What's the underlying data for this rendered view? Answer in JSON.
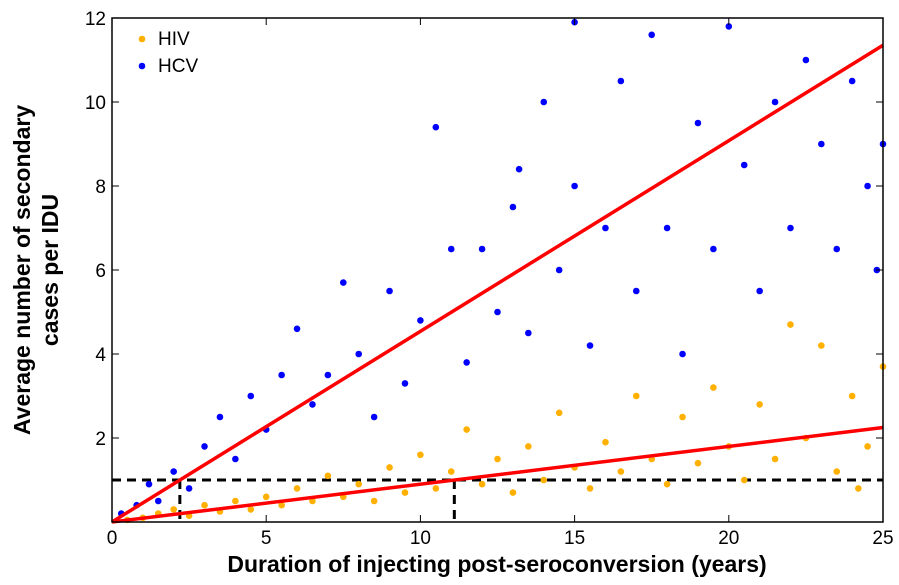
{
  "chart_data": {
    "type": "scatter",
    "xlabel": "Duration of injecting post-seroconversion (years)",
    "ylabel": [
      "Average number of secondary",
      "cases per IDU"
    ],
    "xlim": [
      0,
      25
    ],
    "ylim": [
      0,
      12
    ],
    "xticks": [
      0,
      5,
      10,
      15,
      20,
      25
    ],
    "yticks": [
      2,
      4,
      6,
      8,
      10,
      12
    ],
    "legend": "upper left",
    "series": [
      {
        "name": "HIV",
        "color": "#ffb000",
        "x": [
          0.5,
          1,
          1.5,
          2,
          2.5,
          3,
          3.5,
          4,
          4.5,
          5,
          5.5,
          6,
          6.5,
          7,
          7.5,
          8,
          8.5,
          9,
          9.5,
          10,
          10.5,
          11,
          11.5,
          12,
          12.5,
          13,
          13.5,
          14,
          14.5,
          15,
          15.5,
          16,
          16.5,
          17,
          17.5,
          18,
          18.5,
          19,
          19.5,
          20,
          20.5,
          21,
          21.5,
          22,
          22.5,
          23,
          23.5,
          24,
          24.5,
          25,
          24.2
        ],
        "values": [
          0.05,
          0.1,
          0.2,
          0.3,
          0.15,
          0.4,
          0.25,
          0.5,
          0.3,
          0.6,
          0.4,
          0.8,
          0.5,
          1.1,
          0.6,
          0.9,
          0.5,
          1.3,
          0.7,
          1.6,
          0.8,
          1.2,
          2.2,
          0.9,
          1.5,
          0.7,
          1.8,
          1.0,
          2.6,
          1.3,
          0.8,
          1.9,
          1.2,
          3.0,
          1.5,
          0.9,
          2.5,
          1.4,
          3.2,
          1.8,
          1.0,
          2.8,
          1.5,
          4.7,
          2.0,
          4.2,
          1.2,
          3.0,
          1.8,
          3.7,
          0.8
        ]
      },
      {
        "name": "HCV",
        "color": "#0000ff",
        "x": [
          0.3,
          0.8,
          1.2,
          1.5,
          2,
          2.5,
          3,
          3.5,
          4,
          4.5,
          5,
          5.5,
          6,
          6.5,
          7,
          7.5,
          8,
          8.5,
          9,
          9.5,
          10,
          10.5,
          11,
          11.5,
          12,
          12.5,
          13,
          13.5,
          14,
          14.5,
          15,
          15.5,
          16,
          16.5,
          17,
          17.5,
          18,
          18.5,
          19,
          19.5,
          20,
          20.5,
          21,
          21.5,
          22,
          22.5,
          23,
          23.5,
          24,
          24.5,
          25,
          24.8,
          15,
          13.2
        ],
        "values": [
          0.2,
          0.4,
          0.9,
          0.5,
          1.2,
          0.8,
          1.8,
          2.5,
          1.5,
          3.0,
          2.2,
          3.5,
          4.6,
          2.8,
          3.5,
          5.7,
          4.0,
          2.5,
          5.5,
          3.3,
          4.8,
          9.4,
          6.5,
          3.8,
          6.5,
          5.0,
          7.5,
          4.5,
          10.0,
          6.0,
          8.0,
          4.2,
          7.0,
          10.5,
          5.5,
          11.6,
          7.0,
          4.0,
          9.5,
          6.5,
          11.8,
          8.5,
          5.5,
          10.0,
          7.0,
          11.0,
          9.0,
          6.5,
          10.5,
          8.0,
          9.0,
          6.0,
          11.9,
          8.4
        ]
      }
    ],
    "fit_lines": [
      {
        "color": "#ff0000",
        "x": [
          0,
          25
        ],
        "values": [
          0,
          2.25
        ]
      },
      {
        "color": "#ff0000",
        "x": [
          0,
          25
        ],
        "values": [
          0,
          11.35
        ]
      }
    ],
    "reference_lines": {
      "y": 1,
      "x": [
        2.2,
        11.1
      ]
    }
  }
}
